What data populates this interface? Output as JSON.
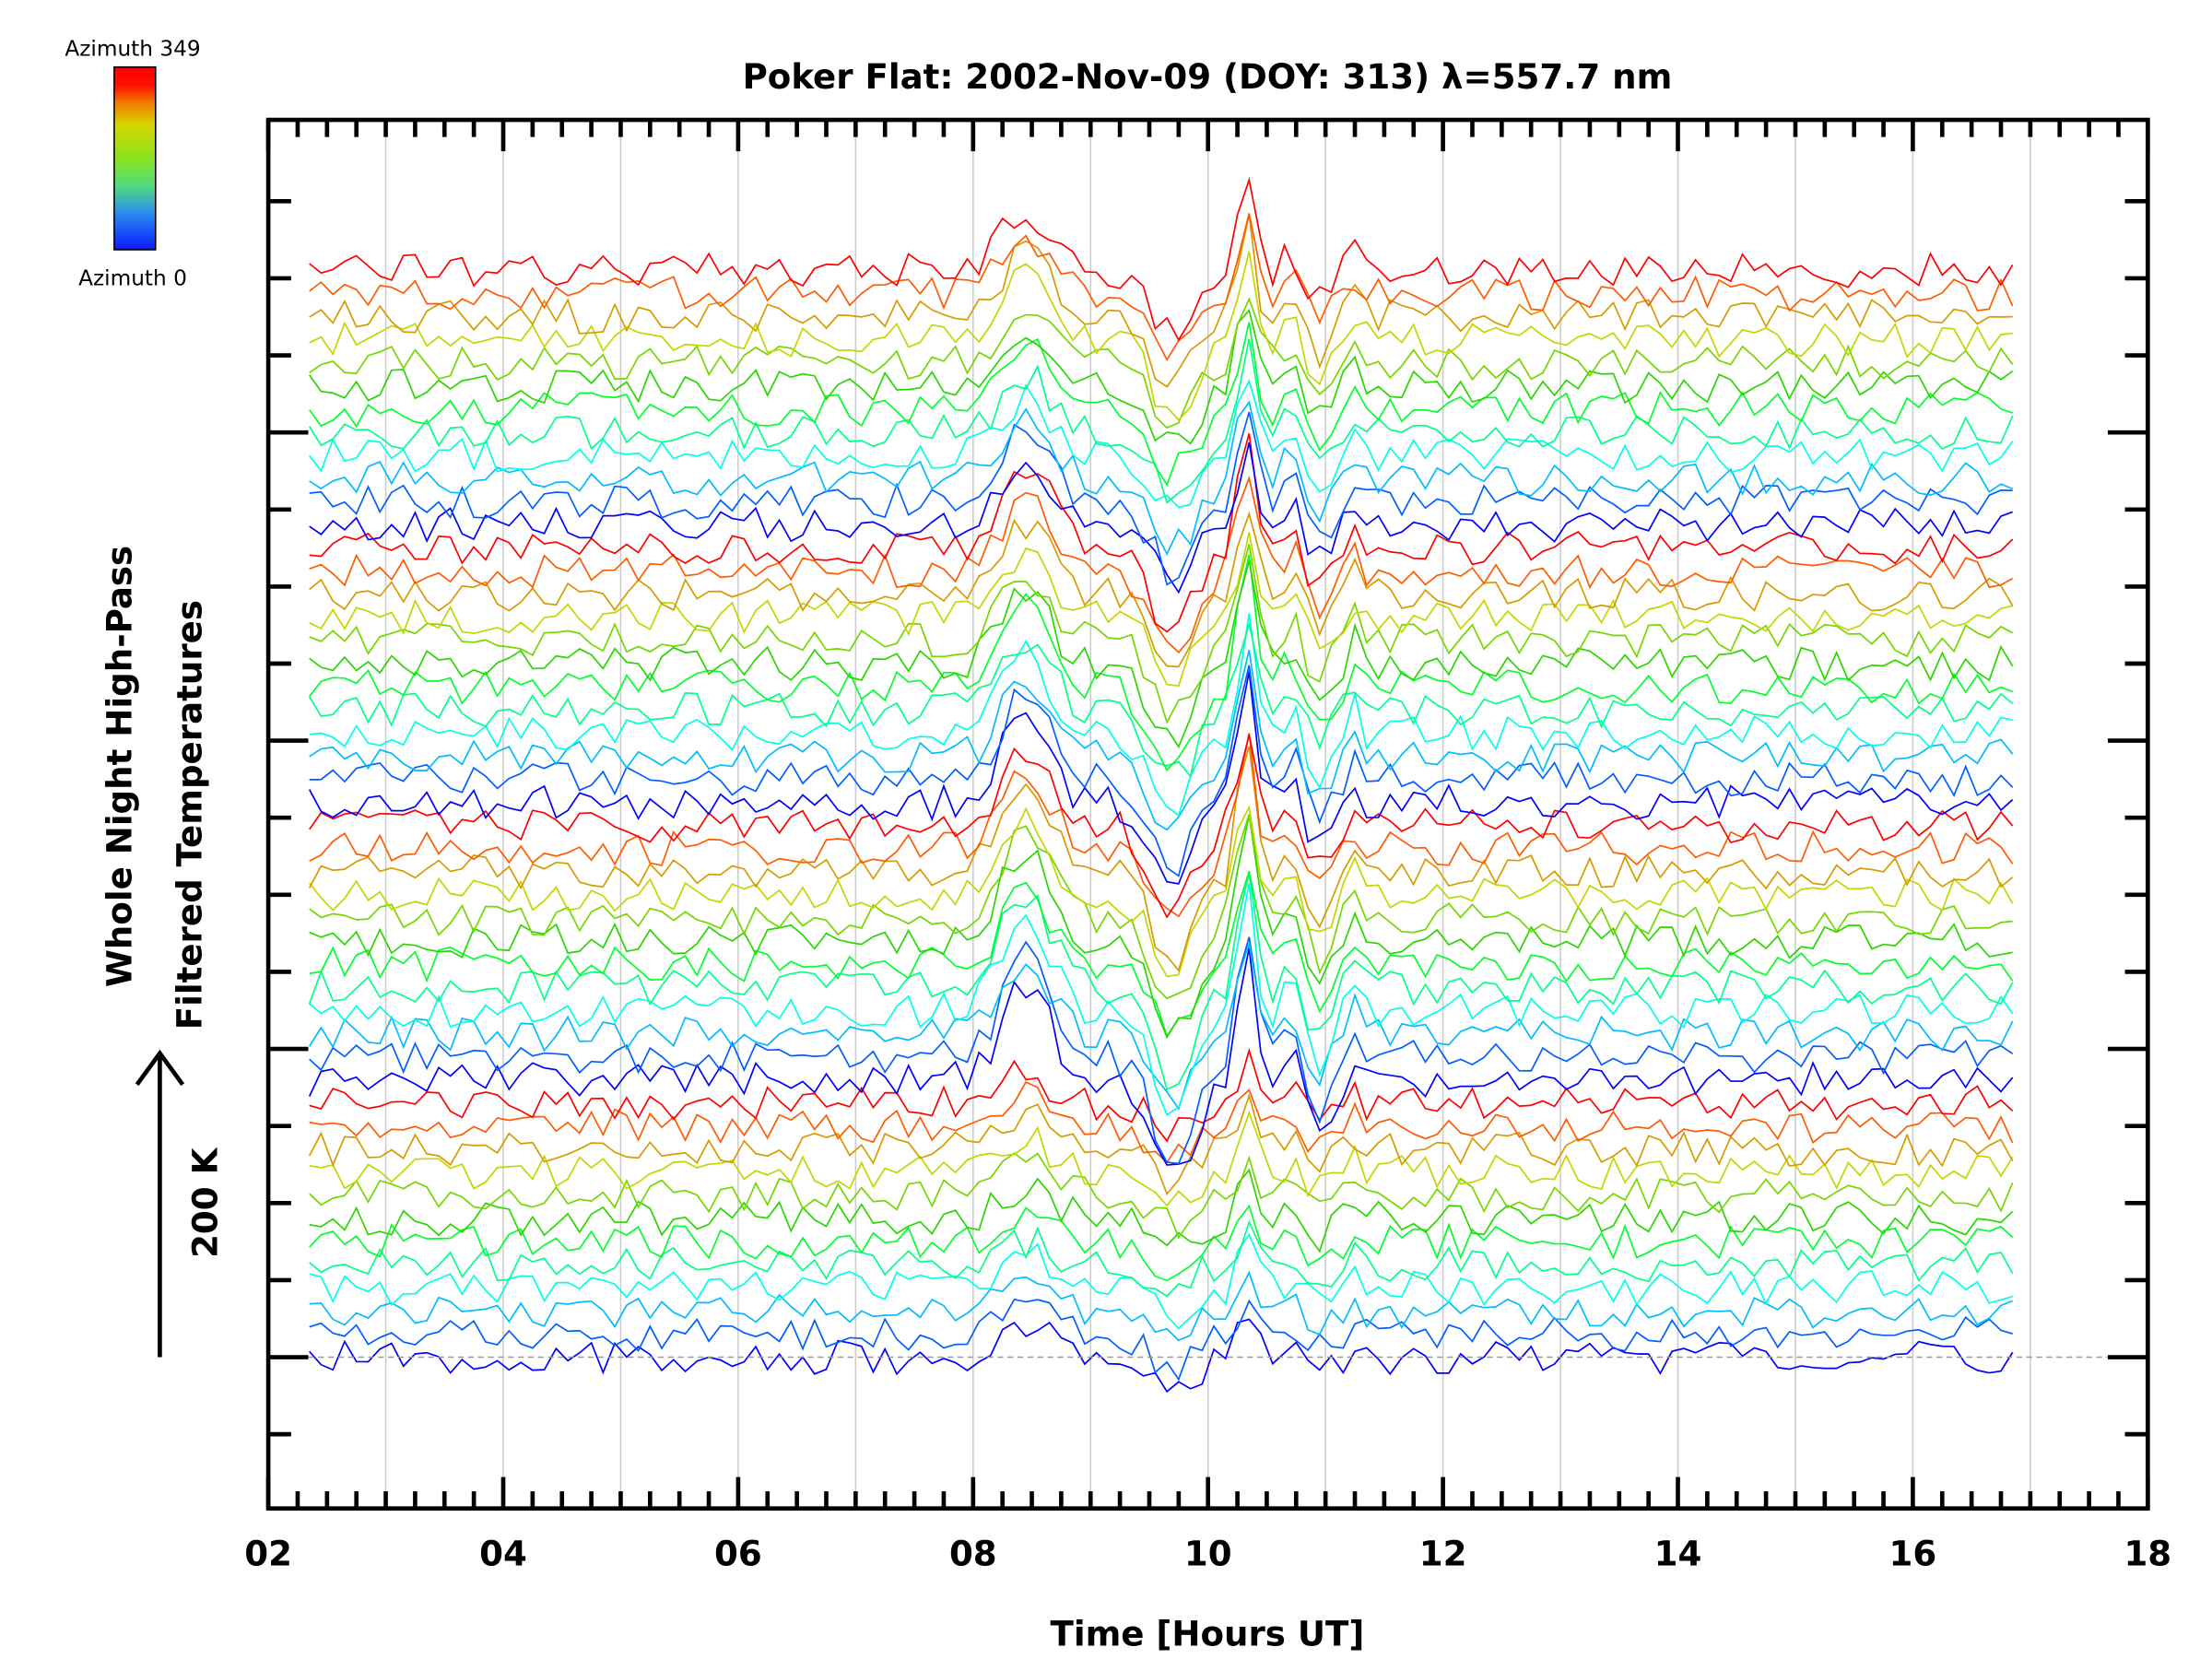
{
  "chart_data": {
    "type": "line",
    "title": "Poker Flat: 2002-Nov-09 (DOY: 313) λ=557.7 nm",
    "xlabel": "Time [Hours UT]",
    "ylabel_lines": [
      "Whole Night High-Pass",
      "Filtered Temperatures"
    ],
    "scale_bar_label": "200 K",
    "scale_bar_value_K": 200,
    "xlim": [
      2,
      18
    ],
    "xticks": [
      "02",
      "04",
      "06",
      "08",
      "10",
      "12",
      "14",
      "16",
      "18"
    ],
    "xtick_values": [
      2,
      4,
      6,
      8,
      10,
      12,
      14,
      16,
      18
    ],
    "ylim_K": [
      -100,
      800
    ],
    "y_units": "K (stacked offsets)",
    "grid": "vertical, hourly",
    "colorbar": {
      "top_label": "Azimuth 349",
      "bottom_label": "Azimuth 0",
      "min": 0,
      "max": 349,
      "placement": "top-left"
    },
    "time_start": 2.35,
    "time_end": 16.9,
    "time_step": 0.1,
    "noise_K": 11,
    "common_features": [
      {
        "t": 8.45,
        "amp_K": 55,
        "width_h": 0.28
      },
      {
        "t": 9.7,
        "amp_K": -55,
        "width_h": 0.25
      },
      {
        "t": 10.33,
        "amp_K": 75,
        "width_h": 0.1
      },
      {
        "t": 10.7,
        "amp_K": 22,
        "width_h": 0.06
      },
      {
        "t": 10.95,
        "amp_K": -30,
        "width_h": 0.12
      },
      {
        "t": 11.25,
        "amp_K": 16,
        "width_h": 0.06
      }
    ],
    "azimuth_cycle": [
      0,
      32,
      64,
      96,
      127,
      159,
      191,
      222,
      254,
      286,
      318,
      349
    ],
    "cycle_feature_gain": [
      0.35,
      1.0,
      0.9,
      0.8
    ],
    "n_series": 48,
    "offset_step_K": 15
  }
}
